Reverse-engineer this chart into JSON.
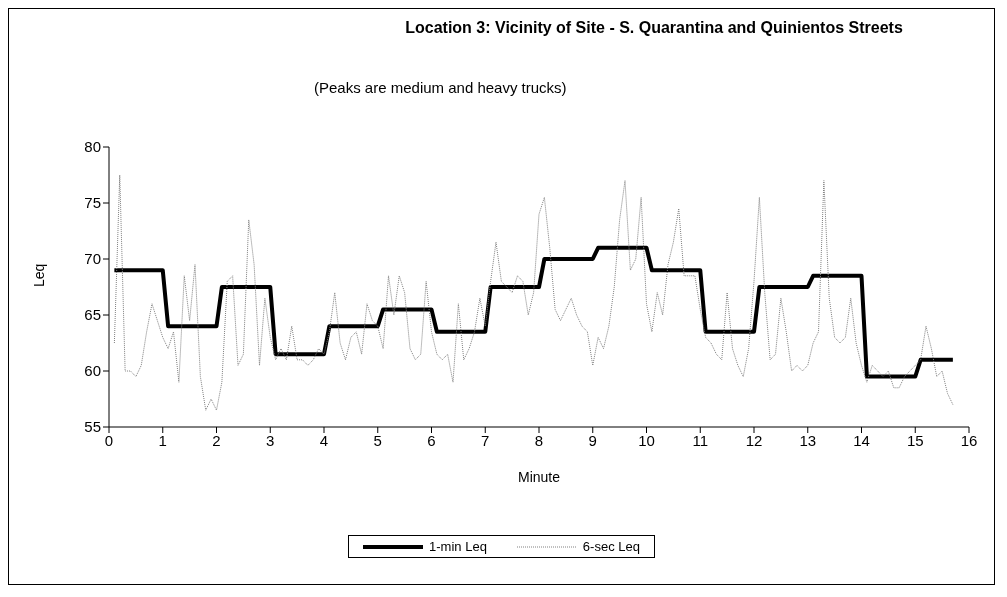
{
  "chart_data": {
    "type": "line",
    "title": "Location 3:  Vicinity of Site - S. Quarantina and Quinientos Streets",
    "annotations": [
      "(Peaks are medium and heavy trucks)"
    ],
    "xlabel": "Minute",
    "ylabel": "Leq",
    "x": [
      0.1,
      0.2,
      0.3,
      0.4,
      0.5,
      0.6,
      0.7,
      0.8,
      0.9,
      1.0,
      1.1,
      1.2,
      1.3,
      1.4,
      1.5,
      1.6,
      1.7,
      1.8,
      1.9,
      2.0,
      2.1,
      2.2,
      2.3,
      2.4,
      2.5,
      2.6,
      2.7,
      2.8,
      2.9,
      3.0,
      3.1,
      3.2,
      3.3,
      3.4,
      3.5,
      3.6,
      3.7,
      3.8,
      3.9,
      4.0,
      4.1,
      4.2,
      4.3,
      4.4,
      4.5,
      4.6,
      4.7,
      4.8,
      4.9,
      5.0,
      5.1,
      5.2,
      5.3,
      5.4,
      5.5,
      5.6,
      5.7,
      5.8,
      5.9,
      6.0,
      6.1,
      6.2,
      6.3,
      6.4,
      6.5,
      6.6,
      6.7,
      6.8,
      6.9,
      7.0,
      7.1,
      7.2,
      7.3,
      7.4,
      7.5,
      7.6,
      7.7,
      7.8,
      7.9,
      8.0,
      8.1,
      8.2,
      8.3,
      8.4,
      8.5,
      8.6,
      8.7,
      8.8,
      8.9,
      9.0,
      9.1,
      9.2,
      9.3,
      9.4,
      9.5,
      9.6,
      9.7,
      9.8,
      9.9,
      10.0,
      10.1,
      10.2,
      10.3,
      10.4,
      10.5,
      10.6,
      10.7,
      10.8,
      10.9,
      11.0,
      11.1,
      11.2,
      11.3,
      11.4,
      11.5,
      11.6,
      11.7,
      11.8,
      11.9,
      12.0,
      12.1,
      12.2,
      12.3,
      12.4,
      12.5,
      12.6,
      12.7,
      12.8,
      12.9,
      13.0,
      13.1,
      13.2,
      13.3,
      13.4,
      13.5,
      13.6,
      13.7,
      13.8,
      13.9,
      14.0,
      14.1,
      14.2,
      14.3,
      14.4,
      14.5,
      14.6,
      14.7,
      14.8,
      14.9,
      15.0,
      15.1,
      15.2,
      15.3,
      15.4,
      15.5,
      15.6,
      15.7
    ],
    "series": [
      {
        "name": "1-min Leq",
        "color": "#000000",
        "line_style": "solid",
        "x": [
          0.1,
          1.0,
          1.1,
          2.0,
          2.1,
          3.0,
          3.1,
          4.0,
          4.1,
          5.0,
          5.1,
          6.0,
          6.1,
          7.0,
          7.1,
          8.0,
          8.1,
          9.0,
          9.1,
          10.0,
          10.1,
          11.0,
          11.1,
          12.0,
          12.1,
          13.0,
          13.1,
          14.0,
          14.1,
          15.0,
          15.1,
          15.7
        ],
        "values": [
          69,
          69,
          64,
          64,
          67.5,
          67.5,
          61.5,
          61.5,
          64,
          64,
          65.5,
          65.5,
          63.5,
          63.5,
          67.5,
          67.5,
          70,
          70,
          71,
          71,
          69,
          69,
          63.5,
          63.5,
          67.5,
          67.5,
          68.5,
          68.5,
          59.5,
          59.5,
          61,
          61
        ]
      },
      {
        "name": "6-sec Leq",
        "color": "#808080",
        "line_style": "dotted",
        "values": [
          62.5,
          77.5,
          60,
          60,
          59.5,
          60.5,
          63.5,
          66,
          64.5,
          63,
          62,
          63.5,
          59,
          68.5,
          64.5,
          69.5,
          59.5,
          56.5,
          57.5,
          56.5,
          59,
          68,
          68.5,
          60.5,
          61.5,
          73.5,
          69.5,
          60.5,
          66.5,
          63,
          61,
          62,
          61,
          64,
          61,
          61,
          60.5,
          61,
          62,
          61.5,
          63.5,
          67,
          62.5,
          61,
          63,
          63.5,
          61.5,
          66,
          64.5,
          64,
          62,
          68.5,
          65,
          68.5,
          67,
          62,
          61,
          61.5,
          68,
          63.5,
          61.5,
          61,
          61.5,
          59,
          66,
          61,
          62,
          63.5,
          66.5,
          64,
          68,
          71.5,
          68,
          67.5,
          67,
          68.5,
          68,
          65,
          67,
          74,
          75.5,
          71,
          65.5,
          64.5,
          65.5,
          66.5,
          65,
          64,
          63.5,
          60.5,
          63,
          62,
          64,
          67.5,
          73.5,
          77,
          69,
          70,
          75.5,
          66,
          63.5,
          67,
          65,
          69.5,
          71.5,
          74.5,
          68.5,
          68.5,
          68.5,
          65.5,
          63,
          62.5,
          61.5,
          61,
          67,
          62,
          60.5,
          59.5,
          62,
          68,
          75.5,
          67,
          61,
          61.5,
          66.5,
          63.5,
          60,
          60.5,
          60,
          60.5,
          62.5,
          63.5,
          77,
          66.5,
          63,
          62.5,
          63,
          66.5,
          62.5,
          60.5,
          59,
          60.5,
          60,
          59.5,
          60,
          58.5,
          58.5,
          59.5,
          60,
          60.5,
          61,
          64,
          62,
          59.5,
          60,
          58,
          57
        ]
      }
    ],
    "xlim": [
      0,
      16
    ],
    "xticks": [
      0,
      1,
      2,
      3,
      4,
      5,
      6,
      7,
      8,
      9,
      10,
      11,
      12,
      13,
      14,
      15,
      16
    ],
    "ylim": [
      55,
      80
    ],
    "yticks": [
      55,
      60,
      65,
      70,
      75,
      80
    ],
    "grid": false,
    "legend": "bottom",
    "marker": "none"
  }
}
